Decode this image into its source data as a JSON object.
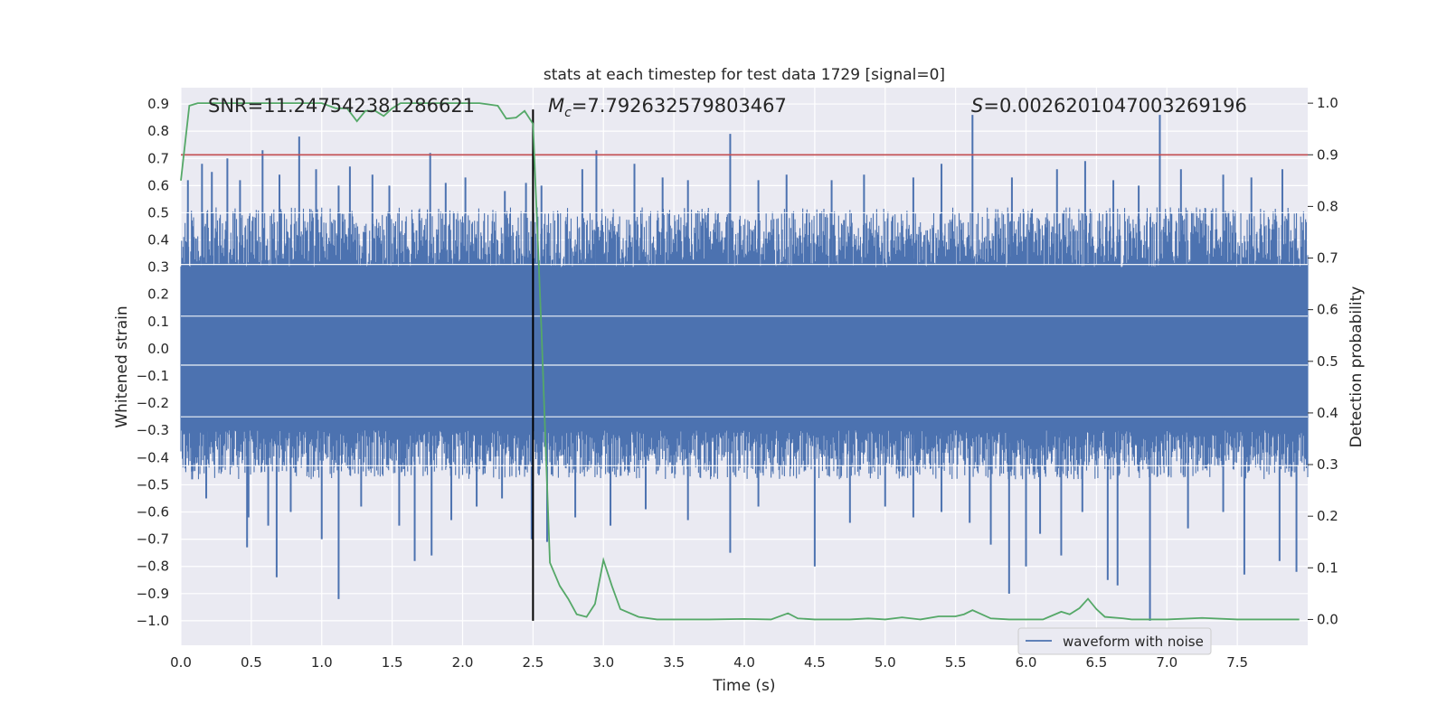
{
  "chart_data": {
    "type": "line",
    "title": "stats at each timestep for test data 1729 [signal=0]",
    "xlabel": "Time (s)",
    "ylabel": "Whitened strain",
    "y2label": "Detection probability",
    "xlim": [
      0.0,
      8.0
    ],
    "ylim": [
      -1.09,
      0.96
    ],
    "y2lim": [
      -0.05,
      1.03
    ],
    "xticks": [
      "0.0",
      "0.5",
      "1.0",
      "1.5",
      "2.0",
      "2.5",
      "3.0",
      "3.5",
      "4.0",
      "4.5",
      "5.0",
      "5.5",
      "6.0",
      "6.5",
      "7.0",
      "7.5"
    ],
    "yticks": [
      "0.9",
      "0.8",
      "0.7",
      "0.6",
      "0.5",
      "0.4",
      "0.3",
      "0.2",
      "0.1",
      "0.0",
      "-0.1",
      "-0.2",
      "-0.3",
      "-0.4",
      "-0.5",
      "-0.6",
      "-0.7",
      "-0.8",
      "-0.9",
      "-1.0"
    ],
    "y2ticks": [
      "1.0",
      "0.9",
      "0.8",
      "0.7",
      "0.6",
      "0.5",
      "0.4",
      "0.3",
      "0.2",
      "0.1",
      "0.0"
    ],
    "annotations": {
      "snr": "SNR=11.247542381286621",
      "mc_value": "=7.792632579803467",
      "s_value": "=0.002620104700326919​6"
    },
    "threshold": {
      "axis": "y2",
      "value": 0.9,
      "color": "#c44e52"
    },
    "vline": {
      "x": 2.5,
      "y_from": -1.0,
      "y_to": 0.88,
      "color": "#000000"
    },
    "series": [
      {
        "name": "waveform with noise",
        "axis": "y",
        "color": "#4c72b0",
        "kind": "noise",
        "envelope_upper": [
          [
            0.0,
            0.45
          ],
          [
            0.5,
            0.45
          ],
          [
            1.0,
            0.45
          ],
          [
            1.5,
            0.45
          ],
          [
            2.0,
            0.45
          ],
          [
            2.5,
            0.45
          ],
          [
            3.0,
            0.45
          ],
          [
            4.0,
            0.45
          ],
          [
            5.0,
            0.45
          ],
          [
            6.0,
            0.45
          ],
          [
            7.0,
            0.45
          ],
          [
            8.0,
            0.45
          ]
        ],
        "spikes": [
          [
            0.05,
            0.62
          ],
          [
            0.15,
            0.68
          ],
          [
            0.22,
            0.65
          ],
          [
            0.33,
            0.7
          ],
          [
            0.42,
            0.62
          ],
          [
            0.58,
            0.73
          ],
          [
            0.7,
            0.64
          ],
          [
            0.84,
            0.78
          ],
          [
            0.96,
            0.66
          ],
          [
            1.12,
            0.6
          ],
          [
            1.2,
            0.67
          ],
          [
            1.36,
            0.64
          ],
          [
            1.48,
            0.6
          ],
          [
            1.77,
            0.72
          ],
          [
            1.88,
            0.61
          ],
          [
            2.02,
            0.63
          ],
          [
            2.3,
            0.58
          ],
          [
            2.45,
            0.61
          ],
          [
            2.56,
            0.6
          ],
          [
            2.85,
            0.66
          ],
          [
            2.95,
            0.73
          ],
          [
            3.22,
            0.68
          ],
          [
            3.42,
            0.63
          ],
          [
            3.6,
            0.62
          ],
          [
            3.9,
            0.79
          ],
          [
            4.1,
            0.62
          ],
          [
            4.3,
            0.64
          ],
          [
            4.62,
            0.62
          ],
          [
            4.85,
            0.64
          ],
          [
            5.2,
            0.63
          ],
          [
            5.4,
            0.68
          ],
          [
            5.62,
            0.86
          ],
          [
            5.9,
            0.63
          ],
          [
            6.22,
            0.66
          ],
          [
            6.42,
            0.69
          ],
          [
            6.62,
            0.62
          ],
          [
            6.8,
            0.6
          ],
          [
            6.95,
            0.86
          ],
          [
            7.1,
            0.66
          ],
          [
            7.4,
            0.64
          ],
          [
            7.6,
            0.63
          ],
          [
            7.82,
            0.66
          ]
        ],
        "neg_spikes": [
          [
            0.08,
            -0.48
          ],
          [
            0.18,
            -0.55
          ],
          [
            0.48,
            -0.62
          ],
          [
            0.47,
            -0.73
          ],
          [
            0.62,
            -0.65
          ],
          [
            0.68,
            -0.84
          ],
          [
            0.78,
            -0.6
          ],
          [
            1.0,
            -0.7
          ],
          [
            1.12,
            -0.92
          ],
          [
            1.28,
            -0.58
          ],
          [
            1.55,
            -0.65
          ],
          [
            1.66,
            -0.78
          ],
          [
            1.78,
            -0.76
          ],
          [
            1.92,
            -0.63
          ],
          [
            2.1,
            -0.58
          ],
          [
            2.28,
            -0.55
          ],
          [
            2.49,
            -0.7
          ],
          [
            2.6,
            -0.71
          ],
          [
            2.8,
            -0.62
          ],
          [
            3.05,
            -0.65
          ],
          [
            3.3,
            -0.59
          ],
          [
            3.6,
            -0.63
          ],
          [
            3.9,
            -0.75
          ],
          [
            4.1,
            -0.58
          ],
          [
            4.5,
            -0.8
          ],
          [
            4.75,
            -0.64
          ],
          [
            5.0,
            -0.58
          ],
          [
            5.2,
            -0.62
          ],
          [
            5.4,
            -0.6
          ],
          [
            5.6,
            -0.64
          ],
          [
            5.75,
            -0.72
          ],
          [
            5.88,
            -0.9
          ],
          [
            6.0,
            -0.8
          ],
          [
            6.1,
            -0.68
          ],
          [
            6.25,
            -0.76
          ],
          [
            6.4,
            -0.6
          ],
          [
            6.58,
            -0.85
          ],
          [
            6.65,
            -0.87
          ],
          [
            6.88,
            -1.0
          ],
          [
            7.15,
            -0.66
          ],
          [
            7.4,
            -0.6
          ],
          [
            7.55,
            -0.83
          ],
          [
            7.8,
            -0.78
          ],
          [
            7.92,
            -0.82
          ]
        ]
      },
      {
        "name": "detection probability",
        "axis": "y2",
        "color": "#55a868",
        "kind": "line",
        "x": [
          0.0,
          0.06,
          0.12,
          0.25,
          0.5,
          0.75,
          1.0,
          1.1,
          1.18,
          1.25,
          1.31,
          1.38,
          1.44,
          1.5,
          1.56,
          1.62,
          1.75,
          2.0,
          2.12,
          2.25,
          2.31,
          2.38,
          2.44,
          2.5,
          2.56,
          2.62,
          2.69,
          2.75,
          2.81,
          2.88,
          2.94,
          3.0,
          3.06,
          3.12,
          3.25,
          3.38,
          3.5,
          3.75,
          4.0,
          4.19,
          4.31,
          4.38,
          4.5,
          4.75,
          4.88,
          5.0,
          5.12,
          5.25,
          5.38,
          5.5,
          5.56,
          5.62,
          5.75,
          5.88,
          6.0,
          6.12,
          6.25,
          6.31,
          6.38,
          6.44,
          6.5,
          6.56,
          6.69,
          6.75,
          6.88,
          7.0,
          7.25,
          7.5,
          7.75,
          7.94
        ],
        "y": [
          0.85,
          0.995,
          1.0,
          1.0,
          1.0,
          1.0,
          1.0,
          0.99,
          0.99,
          0.965,
          0.985,
          0.985,
          0.975,
          0.99,
          1.0,
          1.0,
          1.0,
          1.0,
          1.0,
          0.995,
          0.97,
          0.972,
          0.985,
          0.96,
          0.56,
          0.11,
          0.065,
          0.04,
          0.01,
          0.005,
          0.03,
          0.115,
          0.065,
          0.02,
          0.005,
          0.0,
          0.0,
          0.0,
          0.001,
          0.0,
          0.012,
          0.002,
          0.0,
          0.0,
          0.002,
          0.0,
          0.004,
          0.0,
          0.006,
          0.006,
          0.01,
          0.018,
          0.002,
          0.0,
          0.0,
          0.0,
          0.015,
          0.01,
          0.022,
          0.04,
          0.02,
          0.005,
          0.002,
          0.0,
          0.0,
          0.0,
          0.003,
          0.0,
          0.0,
          0.0
        ]
      }
    ],
    "legend": {
      "position": "lower-right",
      "label": "waveform with noise"
    }
  }
}
